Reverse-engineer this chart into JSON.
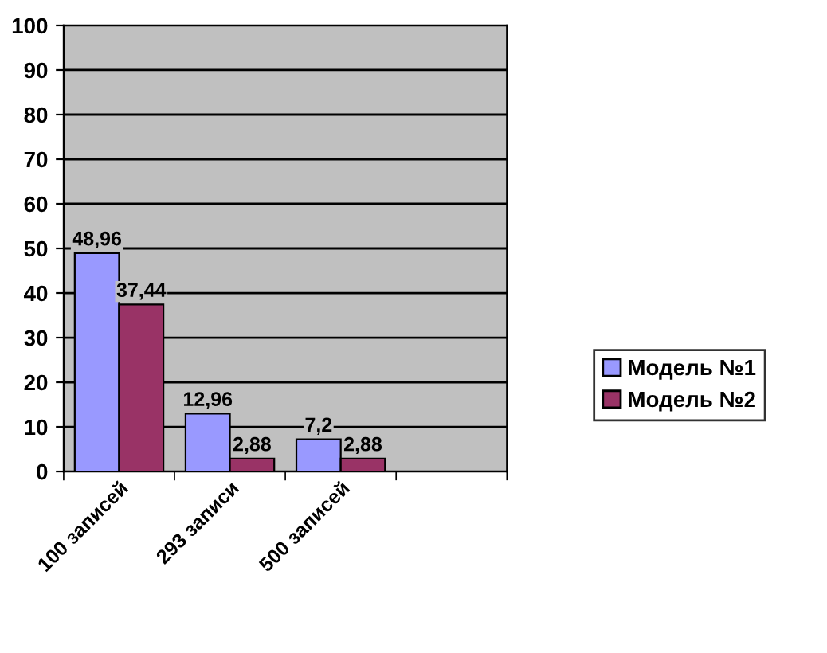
{
  "chart_data": {
    "type": "bar",
    "categories": [
      "100 записей",
      "293 записи",
      "500 записей",
      null
    ],
    "series": [
      {
        "name": "Модель №1",
        "color": "#9999ff",
        "values": [
          48.96,
          12.96,
          7.2,
          null
        ],
        "value_labels": [
          "48,96",
          "12,96",
          "7,2",
          null
        ]
      },
      {
        "name": "Модель №2",
        "color": "#993366",
        "values": [
          37.44,
          2.88,
          2.88,
          null
        ],
        "value_labels": [
          "37,44",
          "2,88",
          "2,88",
          null
        ]
      }
    ],
    "ylim": [
      0,
      100
    ],
    "yticks": [
      0,
      10,
      20,
      30,
      40,
      50,
      60,
      70,
      80,
      90,
      100
    ],
    "grid": "y",
    "legend": "right"
  }
}
